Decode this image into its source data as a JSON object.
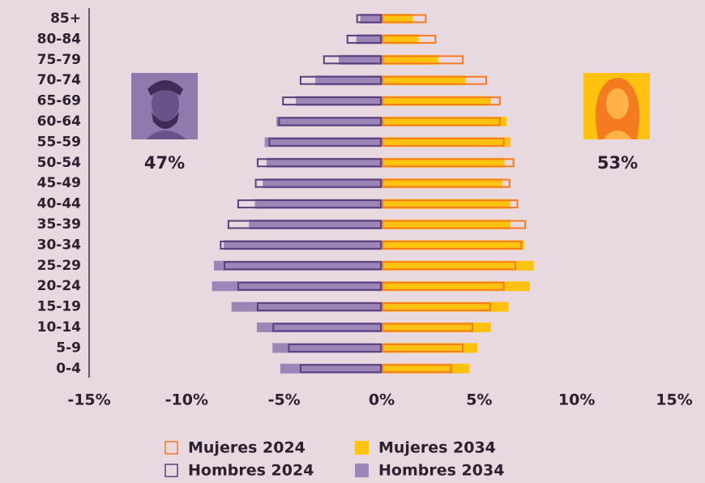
{
  "chart_data": {
    "type": "pyramid",
    "categories": [
      "85+",
      "80-84",
      "75-79",
      "70-74",
      "65-69",
      "60-64",
      "55-59",
      "50-54",
      "45-49",
      "40-44",
      "35-39",
      "30-34",
      "25-29",
      "20-24",
      "15-19",
      "10-14",
      "5-9",
      "0-4"
    ],
    "series": [
      {
        "name": "Mujeres 2024",
        "color": "#f47b20",
        "style": "outline",
        "values": [
          2.3,
          2.8,
          4.2,
          5.4,
          6.1,
          6.1,
          6.3,
          6.8,
          6.6,
          7.0,
          7.4,
          7.2,
          6.9,
          6.3,
          5.6,
          4.7,
          4.2,
          3.6
        ]
      },
      {
        "name": "Mujeres 2034",
        "color": "#ffc20e",
        "style": "filled",
        "values": [
          1.6,
          1.9,
          2.9,
          4.3,
          5.6,
          6.4,
          6.6,
          6.3,
          6.2,
          6.6,
          6.6,
          7.3,
          7.8,
          7.6,
          6.5,
          5.6,
          4.9,
          4.5
        ]
      },
      {
        "name": "Hombres 2024",
        "color": "#5b3f7e",
        "style": "outline",
        "values": [
          -1.3,
          -1.8,
          -3.0,
          -4.2,
          -5.1,
          -5.3,
          -5.8,
          -6.4,
          -6.5,
          -7.4,
          -7.9,
          -8.3,
          -8.1,
          -7.4,
          -6.4,
          -5.6,
          -4.8,
          -4.2
        ]
      },
      {
        "name": "Hombres 2034",
        "color": "#9c86b8",
        "style": "filled",
        "values": [
          -1.1,
          -1.3,
          -2.2,
          -3.4,
          -4.4,
          -5.4,
          -6.0,
          -5.9,
          -6.1,
          -6.5,
          -6.8,
          -8.1,
          -8.6,
          -8.7,
          -7.7,
          -6.4,
          -5.6,
          -5.2
        ]
      }
    ],
    "xlim": [
      -15,
      15
    ],
    "xticks": [
      {
        "value": -15,
        "label": "-15%"
      },
      {
        "value": -10,
        "label": "-10%"
      },
      {
        "value": -5,
        "label": "-5%"
      },
      {
        "value": 0,
        "label": "0%"
      },
      {
        "value": 5,
        "label": "5%"
      },
      {
        "value": 10,
        "label": "10%"
      },
      {
        "value": 15,
        "label": "15%"
      }
    ],
    "annotations": [
      "47%",
      "53%"
    ]
  }
}
